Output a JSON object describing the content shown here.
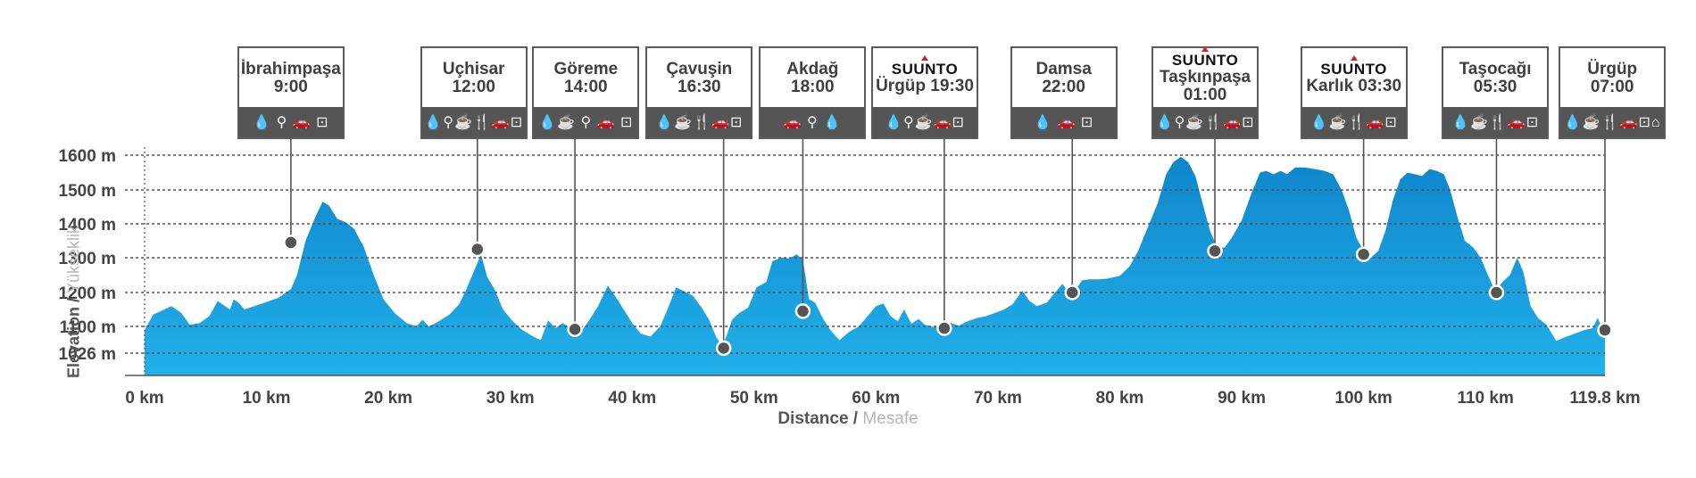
{
  "chart_data": {
    "type": "area",
    "xlabel": "Distance",
    "xlabel_alt": "Mesafe",
    "ylabel": "Elevation",
    "ylabel_alt": "Yükseklik",
    "xlim": [
      0,
      119.8
    ],
    "ylim_display": [
      950,
      1600
    ],
    "y_ticks": [
      {
        "value": 1600,
        "label": "1600 m"
      },
      {
        "value": 1500,
        "label": "1500 m"
      },
      {
        "value": 1400,
        "label": "1400 m"
      },
      {
        "value": 1300,
        "label": "1300 m"
      },
      {
        "value": 1200,
        "label": "1200 m"
      },
      {
        "value": 1100,
        "label": "1100 m"
      },
      {
        "value": 1026,
        "label": "1026 m"
      }
    ],
    "x_ticks": [
      {
        "value": 0,
        "label": "0 km"
      },
      {
        "value": 10,
        "label": "10 km"
      },
      {
        "value": 20,
        "label": "20 km"
      },
      {
        "value": 30,
        "label": "30 km"
      },
      {
        "value": 40,
        "label": "40 km"
      },
      {
        "value": 50,
        "label": "50 km"
      },
      {
        "value": 60,
        "label": "60 km"
      },
      {
        "value": 70,
        "label": "70 km"
      },
      {
        "value": 80,
        "label": "80 km"
      },
      {
        "value": 90,
        "label": "90 km"
      },
      {
        "value": 100,
        "label": "100 km"
      },
      {
        "value": 110,
        "label": "110 km"
      },
      {
        "value": 119.8,
        "label": "119.8 km"
      }
    ],
    "grid": "dotted horizontal",
    "colors": {
      "fill_top": "#0f86cc",
      "fill_bottom": "#22b0ea",
      "grid": "#555555",
      "box_border": "#5a5a5a",
      "icon_bar": "#555555",
      "brand_mark": "#d81e1e"
    },
    "profile": [
      [
        0,
        1090
      ],
      [
        0.7,
        1135
      ],
      [
        1.5,
        1148
      ],
      [
        2.2,
        1160
      ],
      [
        3,
        1140
      ],
      [
        3.7,
        1105
      ],
      [
        4.5,
        1110
      ],
      [
        5.3,
        1130
      ],
      [
        6,
        1175
      ],
      [
        6.6,
        1160
      ],
      [
        7,
        1150
      ],
      [
        7.3,
        1180
      ],
      [
        7.7,
        1170
      ],
      [
        8.2,
        1150
      ],
      [
        9,
        1160
      ],
      [
        10,
        1172
      ],
      [
        11,
        1185
      ],
      [
        12,
        1210
      ],
      [
        12.5,
        1250
      ],
      [
        13.2,
        1350
      ],
      [
        14,
        1420
      ],
      [
        14.6,
        1465
      ],
      [
        15.1,
        1455
      ],
      [
        15.8,
        1415
      ],
      [
        16.5,
        1405
      ],
      [
        17.2,
        1385
      ],
      [
        18,
        1330
      ],
      [
        18.8,
        1250
      ],
      [
        19.6,
        1180
      ],
      [
        20.5,
        1140
      ],
      [
        21.5,
        1110
      ],
      [
        22.3,
        1100
      ],
      [
        22.8,
        1120
      ],
      [
        23.3,
        1100
      ],
      [
        24,
        1112
      ],
      [
        25,
        1135
      ],
      [
        25.8,
        1165
      ],
      [
        26.4,
        1210
      ],
      [
        27,
        1260
      ],
      [
        27.6,
        1310
      ],
      [
        28.1,
        1245
      ],
      [
        28.7,
        1210
      ],
      [
        29.4,
        1150
      ],
      [
        30.2,
        1115
      ],
      [
        31,
        1090
      ],
      [
        32,
        1070
      ],
      [
        32.5,
        1062
      ],
      [
        33.1,
        1118
      ],
      [
        33.7,
        1095
      ],
      [
        34.3,
        1110
      ],
      [
        35,
        1095
      ],
      [
        35.8,
        1085
      ],
      [
        36.5,
        1120
      ],
      [
        37.2,
        1160
      ],
      [
        38,
        1220
      ],
      [
        38.6,
        1190
      ],
      [
        39.3,
        1150
      ],
      [
        40,
        1110
      ],
      [
        40.7,
        1080
      ],
      [
        41.5,
        1072
      ],
      [
        42.3,
        1100
      ],
      [
        43,
        1160
      ],
      [
        43.6,
        1215
      ],
      [
        44.2,
        1205
      ],
      [
        45,
        1190
      ],
      [
        45.7,
        1155
      ],
      [
        46.3,
        1120
      ],
      [
        46.9,
        1070
      ],
      [
        47.4,
        1045
      ],
      [
        47.8,
        1080
      ],
      [
        48.2,
        1120
      ],
      [
        48.8,
        1140
      ],
      [
        49.5,
        1155
      ],
      [
        50.2,
        1215
      ],
      [
        51,
        1230
      ],
      [
        51.5,
        1290
      ],
      [
        52.2,
        1300
      ],
      [
        52.9,
        1298
      ],
      [
        53.5,
        1310
      ],
      [
        54,
        1295
      ],
      [
        54.5,
        1180
      ],
      [
        55,
        1170
      ],
      [
        55.7,
        1120
      ],
      [
        56.3,
        1088
      ],
      [
        57,
        1062
      ],
      [
        57.8,
        1085
      ],
      [
        58.6,
        1100
      ],
      [
        59.3,
        1130
      ],
      [
        60,
        1160
      ],
      [
        60.6,
        1168
      ],
      [
        61.2,
        1130
      ],
      [
        61.8,
        1115
      ],
      [
        62.3,
        1150
      ],
      [
        62.9,
        1108
      ],
      [
        63.5,
        1122
      ],
      [
        64,
        1105
      ],
      [
        64.7,
        1098
      ],
      [
        65.3,
        1100
      ],
      [
        66,
        1112
      ],
      [
        66.8,
        1102
      ],
      [
        67.5,
        1115
      ],
      [
        68.3,
        1125
      ],
      [
        69,
        1130
      ],
      [
        69.8,
        1140
      ],
      [
        70.5,
        1150
      ],
      [
        71.2,
        1165
      ],
      [
        72,
        1205
      ],
      [
        72.6,
        1175
      ],
      [
        73.2,
        1160
      ],
      [
        74,
        1170
      ],
      [
        74.7,
        1200
      ],
      [
        75.3,
        1225
      ],
      [
        75.8,
        1200
      ],
      [
        76.3,
        1205
      ],
      [
        76.9,
        1235
      ],
      [
        77.5,
        1238
      ],
      [
        78.3,
        1238
      ],
      [
        79,
        1240
      ],
      [
        80,
        1248
      ],
      [
        80.8,
        1275
      ],
      [
        81.5,
        1320
      ],
      [
        82.3,
        1390
      ],
      [
        83.1,
        1460
      ],
      [
        83.8,
        1545
      ],
      [
        84.4,
        1580
      ],
      [
        85,
        1595
      ],
      [
        85.6,
        1580
      ],
      [
        86.2,
        1540
      ],
      [
        86.8,
        1460
      ],
      [
        87.4,
        1380
      ],
      [
        88,
        1330
      ],
      [
        88.6,
        1330
      ],
      [
        89.2,
        1360
      ],
      [
        90,
        1410
      ],
      [
        90.8,
        1490
      ],
      [
        91.5,
        1550
      ],
      [
        92,
        1555
      ],
      [
        92.6,
        1545
      ],
      [
        93.2,
        1555
      ],
      [
        93.7,
        1545
      ],
      [
        94.4,
        1565
      ],
      [
        95.2,
        1565
      ],
      [
        96,
        1560
      ],
      [
        96.8,
        1555
      ],
      [
        97.5,
        1545
      ],
      [
        98.2,
        1500
      ],
      [
        98.8,
        1440
      ],
      [
        99.4,
        1360
      ],
      [
        100,
        1320
      ],
      [
        100.6,
        1300
      ],
      [
        101.2,
        1320
      ],
      [
        101.8,
        1380
      ],
      [
        102.4,
        1470
      ],
      [
        103,
        1530
      ],
      [
        103.6,
        1550
      ],
      [
        104.2,
        1545
      ],
      [
        104.8,
        1540
      ],
      [
        105.4,
        1560
      ],
      [
        106,
        1555
      ],
      [
        106.6,
        1545
      ],
      [
        107.1,
        1500
      ],
      [
        107.7,
        1420
      ],
      [
        108.3,
        1350
      ],
      [
        109,
        1330
      ],
      [
        109.6,
        1300
      ],
      [
        110.2,
        1250
      ],
      [
        110.8,
        1205
      ],
      [
        111.4,
        1230
      ],
      [
        112,
        1250
      ],
      [
        112.6,
        1300
      ],
      [
        113.1,
        1260
      ],
      [
        113.7,
        1160
      ],
      [
        114.3,
        1125
      ],
      [
        115,
        1105
      ],
      [
        115.8,
        1060
      ],
      [
        116.5,
        1070
      ],
      [
        117.3,
        1080
      ],
      [
        118.1,
        1090
      ],
      [
        118.8,
        1095
      ],
      [
        119.2,
        1125
      ],
      [
        119.8,
        1080
      ]
    ]
  },
  "checkpoints": [
    {
      "name": "İbrahimpaşa",
      "time": "9:00",
      "km": 12.0,
      "elev": 1345,
      "box_center_km": 12.0,
      "brand": "",
      "icons": "💧 ⚲ 🚗 ⊡"
    },
    {
      "name": "Uçhisar",
      "time": "12:00",
      "km": 27.3,
      "elev": 1325,
      "box_center_km": 27.0,
      "brand": "",
      "icons": "💧⚲☕🍴🚗⊡"
    },
    {
      "name": "Göreme",
      "time": "14:00",
      "km": 35.3,
      "elev": 1092,
      "box_center_km": 36.2,
      "brand": "",
      "icons": "💧☕ ⚲ 🚗 ⊡"
    },
    {
      "name": "Çavuşin",
      "time": "16:30",
      "km": 47.5,
      "elev": 1040,
      "box_center_km": 45.5,
      "brand": "",
      "icons": "💧☕🍴🚗⊡"
    },
    {
      "name": "Akdağ",
      "time": "18:00",
      "km": 54.0,
      "elev": 1145,
      "box_center_km": 54.8,
      "brand": "",
      "icons": "🚗 ⚲ 💧"
    },
    {
      "name": "Ürgüp 19:30",
      "time": "",
      "km": 65.6,
      "elev": 1095,
      "box_center_km": 64.0,
      "brand": "SUUNTO",
      "icons": "💧⚲☕🚗⊡"
    },
    {
      "name": "Damsa",
      "time": "22:00",
      "km": 76.1,
      "elev": 1200,
      "box_center_km": 75.4,
      "brand": "",
      "icons": "💧 🚗 ⊡"
    },
    {
      "name": "Taşkınpaşa",
      "time": "01:00",
      "km": 87.8,
      "elev": 1320,
      "box_center_km": 87.0,
      "brand": "SUUNTO",
      "icons": "💧⚲☕🍴🚗⊡"
    },
    {
      "name": "Karlık 03:30",
      "time": "",
      "km": 100.0,
      "elev": 1310,
      "box_center_km": 99.2,
      "brand": "SUUNTO",
      "icons": "💧☕🍴🚗⊡"
    },
    {
      "name": "Taşocağı",
      "time": "05:30",
      "km": 110.9,
      "elev": 1200,
      "box_center_km": 110.8,
      "brand": "",
      "icons": "💧☕🍴🚗⊡"
    },
    {
      "name": "Ürgüp",
      "time": "07:00",
      "km": 119.8,
      "elev": 1090,
      "box_center_km": 120.4,
      "brand": "",
      "icons": "💧☕🍴🚗⊡⌂"
    }
  ]
}
